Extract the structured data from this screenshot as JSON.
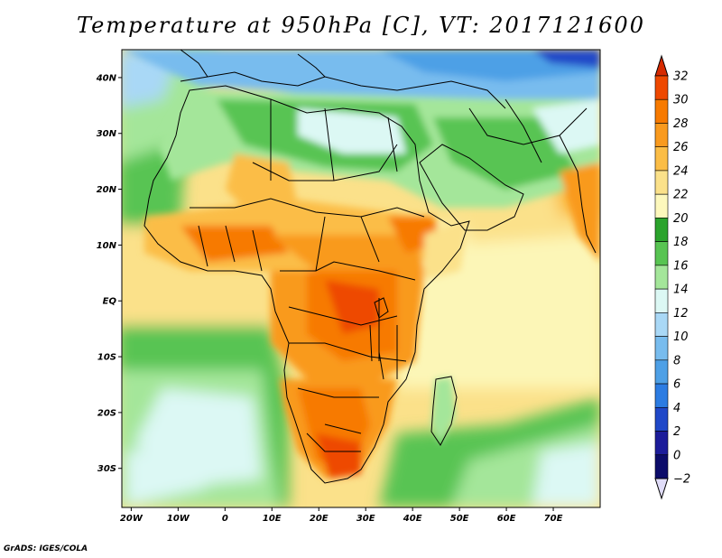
{
  "title": "Temperature at 950hPa [C], VT: 2017121600",
  "credit": "GrADS: IGES/COLA",
  "map": {
    "lon_range": [
      -22,
      80
    ],
    "lat_range": [
      -37,
      45
    ],
    "lat_ticks": [
      {
        "value": 40,
        "label": "40N"
      },
      {
        "value": 30,
        "label": "30N"
      },
      {
        "value": 20,
        "label": "20N"
      },
      {
        "value": 10,
        "label": "10N"
      },
      {
        "value": 0,
        "label": "EQ"
      },
      {
        "value": -10,
        "label": "10S"
      },
      {
        "value": -20,
        "label": "20S"
      },
      {
        "value": -30,
        "label": "30S"
      }
    ],
    "lon_ticks": [
      {
        "value": -20,
        "label": "20W"
      },
      {
        "value": -10,
        "label": "10W"
      },
      {
        "value": 0,
        "label": "0"
      },
      {
        "value": 10,
        "label": "10E"
      },
      {
        "value": 20,
        "label": "20E"
      },
      {
        "value": 30,
        "label": "30E"
      },
      {
        "value": 40,
        "label": "40E"
      },
      {
        "value": 50,
        "label": "50E"
      },
      {
        "value": 60,
        "label": "60E"
      },
      {
        "value": 70,
        "label": "70E"
      }
    ]
  },
  "colorbar": {
    "levels": [
      {
        "value": "32",
        "color": "#d62a00"
      },
      {
        "value": "30",
        "color": "#ee4800"
      },
      {
        "value": "28",
        "color": "#f77a00"
      },
      {
        "value": "26",
        "color": "#f99a1e"
      },
      {
        "value": "24",
        "color": "#fbbd46"
      },
      {
        "value": "22",
        "color": "#fbe18a"
      },
      {
        "value": "20",
        "color": "#fdf8bc"
      },
      {
        "value": "18",
        "color": "#2ba32c"
      },
      {
        "value": "16",
        "color": "#58c452"
      },
      {
        "value": "14",
        "color": "#a4e69a"
      },
      {
        "value": "12",
        "color": "#dcf8f4"
      },
      {
        "value": "10",
        "color": "#a9d8f6"
      },
      {
        "value": "8",
        "color": "#78bcee"
      },
      {
        "value": "6",
        "color": "#4ea0e6"
      },
      {
        "value": "4",
        "color": "#2c7ce2"
      },
      {
        "value": "2",
        "color": "#2048c8"
      },
      {
        "value": "0",
        "color": "#1c1c9a"
      },
      {
        "value": "−2",
        "color": "#0c0c6a"
      }
    ],
    "top_color": "#d62a00",
    "bottom_color": "#e0dcf8"
  },
  "colors": {
    "ocean_mid": "#fdf8bc",
    "ocean_cool": "#a4e69a",
    "land_hot": "#f77a00",
    "land_cool": "#dcf8f4"
  }
}
